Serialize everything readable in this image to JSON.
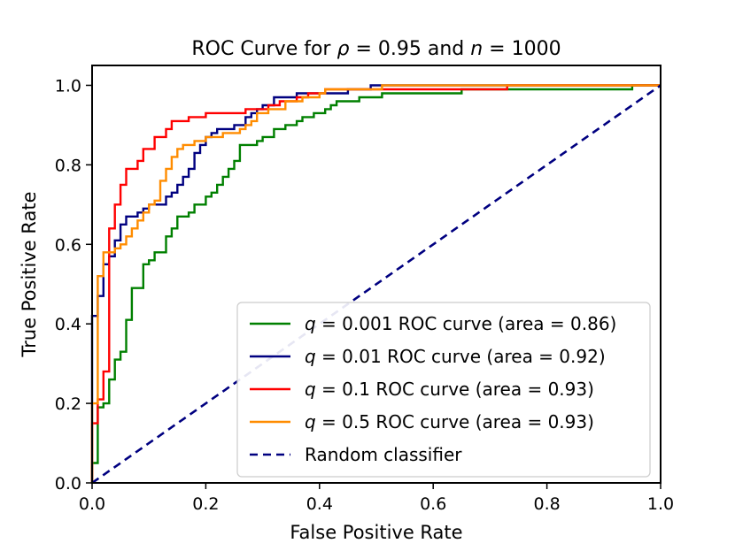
{
  "chart_data": {
    "type": "line",
    "title": "ROC Curve for ρ = 0.95 and n = 1000",
    "title_parts": {
      "prefix": "ROC Curve for ",
      "var1": "ρ",
      "mid1": " = 0.95 and ",
      "var2": "n",
      "mid2": " = 1000"
    },
    "xlabel": "False Positive Rate",
    "ylabel": "True Positive Rate",
    "xlim": [
      0.0,
      1.0
    ],
    "ylim": [
      0.0,
      1.05
    ],
    "xticks": [
      "0.0",
      "0.2",
      "0.4",
      "0.6",
      "0.8",
      "1.0"
    ],
    "yticks": [
      "0.0",
      "0.2",
      "0.4",
      "0.6",
      "0.8",
      "1.0"
    ],
    "grid": false,
    "legend_position": "lower-right",
    "series": [
      {
        "name": "q = 0.001 ROC curve (area = 0.86)",
        "legend_var": "q",
        "legend_rest": " = 0.001 ROC curve (area = 0.86)",
        "color": "#008000",
        "points": [
          [
            0,
            0
          ],
          [
            0,
            0.05
          ],
          [
            0.01,
            0.05
          ],
          [
            0.01,
            0.19
          ],
          [
            0.02,
            0.19
          ],
          [
            0.02,
            0.2
          ],
          [
            0.03,
            0.2
          ],
          [
            0.03,
            0.26
          ],
          [
            0.04,
            0.26
          ],
          [
            0.04,
            0.31
          ],
          [
            0.05,
            0.31
          ],
          [
            0.05,
            0.33
          ],
          [
            0.06,
            0.33
          ],
          [
            0.06,
            0.41
          ],
          [
            0.07,
            0.41
          ],
          [
            0.07,
            0.49
          ],
          [
            0.09,
            0.49
          ],
          [
            0.09,
            0.55
          ],
          [
            0.1,
            0.55
          ],
          [
            0.1,
            0.56
          ],
          [
            0.11,
            0.56
          ],
          [
            0.11,
            0.58
          ],
          [
            0.13,
            0.58
          ],
          [
            0.13,
            0.62
          ],
          [
            0.14,
            0.62
          ],
          [
            0.14,
            0.64
          ],
          [
            0.15,
            0.64
          ],
          [
            0.15,
            0.67
          ],
          [
            0.17,
            0.67
          ],
          [
            0.17,
            0.68
          ],
          [
            0.18,
            0.68
          ],
          [
            0.18,
            0.7
          ],
          [
            0.2,
            0.7
          ],
          [
            0.2,
            0.72
          ],
          [
            0.21,
            0.72
          ],
          [
            0.21,
            0.73
          ],
          [
            0.22,
            0.73
          ],
          [
            0.22,
            0.75
          ],
          [
            0.23,
            0.75
          ],
          [
            0.23,
            0.77
          ],
          [
            0.24,
            0.77
          ],
          [
            0.24,
            0.79
          ],
          [
            0.25,
            0.79
          ],
          [
            0.25,
            0.81
          ],
          [
            0.26,
            0.81
          ],
          [
            0.26,
            0.85
          ],
          [
            0.29,
            0.85
          ],
          [
            0.29,
            0.86
          ],
          [
            0.3,
            0.86
          ],
          [
            0.3,
            0.87
          ],
          [
            0.32,
            0.87
          ],
          [
            0.32,
            0.89
          ],
          [
            0.34,
            0.89
          ],
          [
            0.34,
            0.9
          ],
          [
            0.36,
            0.9
          ],
          [
            0.36,
            0.91
          ],
          [
            0.37,
            0.91
          ],
          [
            0.37,
            0.92
          ],
          [
            0.39,
            0.92
          ],
          [
            0.39,
            0.93
          ],
          [
            0.41,
            0.93
          ],
          [
            0.41,
            0.94
          ],
          [
            0.42,
            0.94
          ],
          [
            0.42,
            0.95
          ],
          [
            0.43,
            0.95
          ],
          [
            0.43,
            0.96
          ],
          [
            0.47,
            0.96
          ],
          [
            0.47,
            0.97
          ],
          [
            0.51,
            0.97
          ],
          [
            0.51,
            0.98
          ],
          [
            0.65,
            0.98
          ],
          [
            0.65,
            0.99
          ],
          [
            0.95,
            0.99
          ],
          [
            0.95,
            1.0
          ],
          [
            1.0,
            1.0
          ]
        ]
      },
      {
        "name": "q = 0.01 ROC curve (area = 0.92)",
        "legend_var": "q",
        "legend_rest": " = 0.01 ROC curve (area = 0.92)",
        "color": "#000080",
        "points": [
          [
            0,
            0
          ],
          [
            0,
            0.42
          ],
          [
            0.01,
            0.42
          ],
          [
            0.01,
            0.47
          ],
          [
            0.02,
            0.47
          ],
          [
            0.02,
            0.55
          ],
          [
            0.03,
            0.55
          ],
          [
            0.03,
            0.57
          ],
          [
            0.04,
            0.57
          ],
          [
            0.04,
            0.61
          ],
          [
            0.05,
            0.61
          ],
          [
            0.05,
            0.65
          ],
          [
            0.06,
            0.65
          ],
          [
            0.06,
            0.67
          ],
          [
            0.08,
            0.67
          ],
          [
            0.08,
            0.68
          ],
          [
            0.09,
            0.68
          ],
          [
            0.09,
            0.69
          ],
          [
            0.1,
            0.69
          ],
          [
            0.1,
            0.7
          ],
          [
            0.13,
            0.7
          ],
          [
            0.13,
            0.72
          ],
          [
            0.14,
            0.72
          ],
          [
            0.14,
            0.73
          ],
          [
            0.15,
            0.73
          ],
          [
            0.15,
            0.75
          ],
          [
            0.16,
            0.75
          ],
          [
            0.16,
            0.77
          ],
          [
            0.17,
            0.77
          ],
          [
            0.17,
            0.79
          ],
          [
            0.18,
            0.79
          ],
          [
            0.18,
            0.83
          ],
          [
            0.19,
            0.83
          ],
          [
            0.19,
            0.85
          ],
          [
            0.2,
            0.85
          ],
          [
            0.2,
            0.87
          ],
          [
            0.21,
            0.87
          ],
          [
            0.21,
            0.88
          ],
          [
            0.22,
            0.88
          ],
          [
            0.22,
            0.89
          ],
          [
            0.25,
            0.89
          ],
          [
            0.25,
            0.9
          ],
          [
            0.27,
            0.9
          ],
          [
            0.27,
            0.92
          ],
          [
            0.28,
            0.92
          ],
          [
            0.28,
            0.93
          ],
          [
            0.29,
            0.93
          ],
          [
            0.29,
            0.94
          ],
          [
            0.3,
            0.94
          ],
          [
            0.3,
            0.95
          ],
          [
            0.32,
            0.95
          ],
          [
            0.32,
            0.97
          ],
          [
            0.36,
            0.97
          ],
          [
            0.36,
            0.98
          ],
          [
            0.45,
            0.98
          ],
          [
            0.45,
            0.99
          ],
          [
            0.49,
            0.99
          ],
          [
            0.49,
            1.0
          ],
          [
            1.0,
            1.0
          ]
        ]
      },
      {
        "name": "q = 0.1 ROC curve (area = 0.93)",
        "legend_var": "q",
        "legend_rest": " = 0.1 ROC curve (area = 0.93)",
        "color": "#ff0000",
        "points": [
          [
            0,
            0
          ],
          [
            0,
            0.15
          ],
          [
            0.01,
            0.15
          ],
          [
            0.01,
            0.21
          ],
          [
            0.02,
            0.21
          ],
          [
            0.02,
            0.28
          ],
          [
            0.03,
            0.28
          ],
          [
            0.03,
            0.55
          ],
          [
            0.03,
            0.64
          ],
          [
            0.04,
            0.64
          ],
          [
            0.04,
            0.7
          ],
          [
            0.05,
            0.7
          ],
          [
            0.05,
            0.75
          ],
          [
            0.06,
            0.75
          ],
          [
            0.06,
            0.79
          ],
          [
            0.08,
            0.79
          ],
          [
            0.08,
            0.81
          ],
          [
            0.09,
            0.81
          ],
          [
            0.09,
            0.84
          ],
          [
            0.11,
            0.84
          ],
          [
            0.11,
            0.87
          ],
          [
            0.13,
            0.87
          ],
          [
            0.13,
            0.89
          ],
          [
            0.14,
            0.89
          ],
          [
            0.14,
            0.91
          ],
          [
            0.17,
            0.91
          ],
          [
            0.17,
            0.92
          ],
          [
            0.2,
            0.92
          ],
          [
            0.2,
            0.93
          ],
          [
            0.27,
            0.93
          ],
          [
            0.27,
            0.94
          ],
          [
            0.31,
            0.94
          ],
          [
            0.31,
            0.95
          ],
          [
            0.33,
            0.95
          ],
          [
            0.33,
            0.96
          ],
          [
            0.36,
            0.96
          ],
          [
            0.36,
            0.97
          ],
          [
            0.38,
            0.97
          ],
          [
            0.38,
            0.98
          ],
          [
            0.41,
            0.98
          ],
          [
            0.41,
            0.99
          ],
          [
            0.73,
            0.99
          ],
          [
            0.73,
            1.0
          ],
          [
            1.0,
            1.0
          ]
        ]
      },
      {
        "name": "q = 0.5 ROC curve (area = 0.93)",
        "legend_var": "q",
        "legend_rest": " = 0.5 ROC curve (area = 0.93)",
        "color": "#ff8c00",
        "points": [
          [
            0,
            0
          ],
          [
            0,
            0.2
          ],
          [
            0.01,
            0.2
          ],
          [
            0.01,
            0.52
          ],
          [
            0.02,
            0.52
          ],
          [
            0.02,
            0.58
          ],
          [
            0.04,
            0.58
          ],
          [
            0.04,
            0.59
          ],
          [
            0.05,
            0.59
          ],
          [
            0.05,
            0.6
          ],
          [
            0.06,
            0.6
          ],
          [
            0.06,
            0.62
          ],
          [
            0.07,
            0.62
          ],
          [
            0.07,
            0.64
          ],
          [
            0.08,
            0.64
          ],
          [
            0.08,
            0.66
          ],
          [
            0.09,
            0.66
          ],
          [
            0.09,
            0.68
          ],
          [
            0.1,
            0.68
          ],
          [
            0.1,
            0.7
          ],
          [
            0.11,
            0.7
          ],
          [
            0.11,
            0.71
          ],
          [
            0.12,
            0.71
          ],
          [
            0.12,
            0.76
          ],
          [
            0.13,
            0.76
          ],
          [
            0.13,
            0.79
          ],
          [
            0.14,
            0.79
          ],
          [
            0.14,
            0.82
          ],
          [
            0.15,
            0.82
          ],
          [
            0.15,
            0.84
          ],
          [
            0.16,
            0.84
          ],
          [
            0.16,
            0.85
          ],
          [
            0.18,
            0.85
          ],
          [
            0.18,
            0.86
          ],
          [
            0.2,
            0.86
          ],
          [
            0.2,
            0.87
          ],
          [
            0.23,
            0.87
          ],
          [
            0.23,
            0.88
          ],
          [
            0.26,
            0.88
          ],
          [
            0.26,
            0.89
          ],
          [
            0.27,
            0.89
          ],
          [
            0.27,
            0.9
          ],
          [
            0.28,
            0.9
          ],
          [
            0.28,
            0.91
          ],
          [
            0.29,
            0.91
          ],
          [
            0.29,
            0.93
          ],
          [
            0.31,
            0.93
          ],
          [
            0.31,
            0.94
          ],
          [
            0.34,
            0.94
          ],
          [
            0.34,
            0.96
          ],
          [
            0.37,
            0.96
          ],
          [
            0.37,
            0.97
          ],
          [
            0.4,
            0.97
          ],
          [
            0.4,
            0.98
          ],
          [
            0.41,
            0.98
          ],
          [
            0.41,
            0.99
          ],
          [
            0.51,
            0.99
          ],
          [
            0.51,
            1.0
          ],
          [
            1.0,
            1.0
          ]
        ]
      },
      {
        "name": "Random classifier",
        "legend_var": "",
        "legend_rest": "Random classifier",
        "color": "#000080",
        "dashed": true,
        "points": [
          [
            0,
            0
          ],
          [
            1,
            1
          ]
        ]
      }
    ]
  }
}
